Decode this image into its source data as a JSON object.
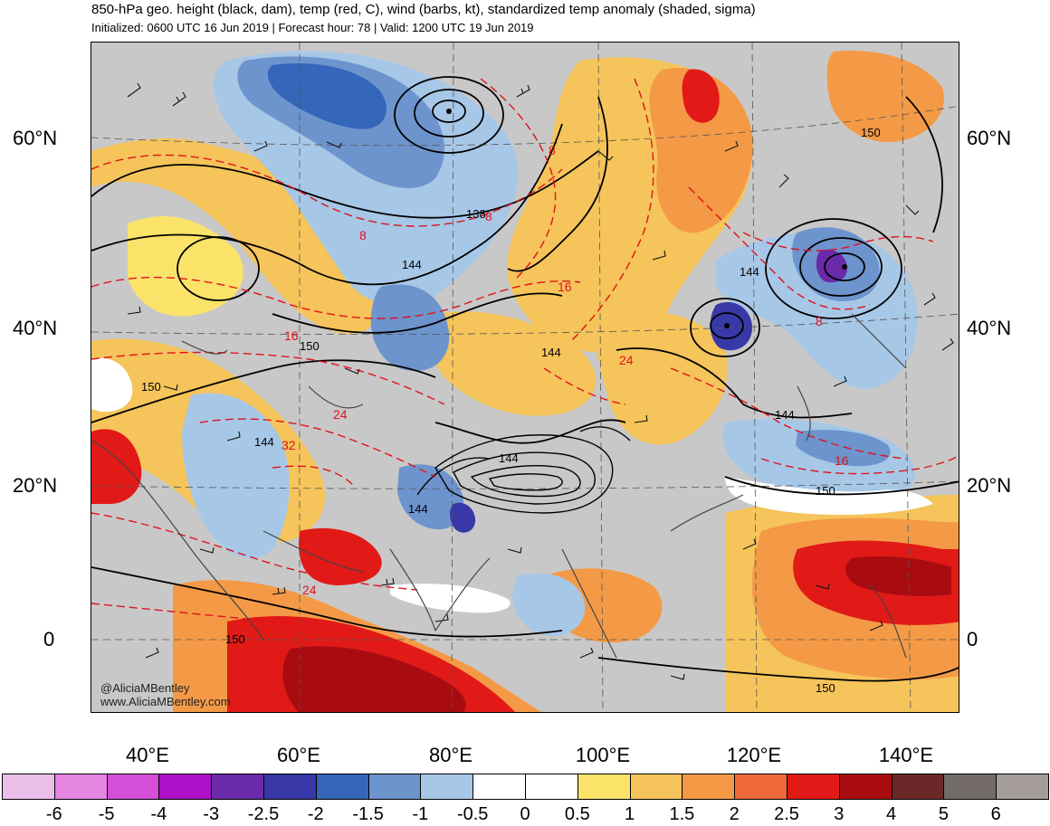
{
  "header": {
    "title": "850-hPa geo. height (black, dam), temp (red, C), wind (barbs, kt), standardized temp anomaly (shaded, sigma)",
    "subtitle": "Initialized: 0600 UTC 16 Jun 2019 | Forecast hour: 78 | Valid: 1200 UTC 19 Jun 2019"
  },
  "axes": {
    "lat_left": [
      "60°N",
      "40°N",
      "20°N",
      "0"
    ],
    "lat_right": [
      "60°N",
      "40°N",
      "20°N",
      "0"
    ],
    "lon_bottom": [
      "40°E",
      "60°E",
      "80°E",
      "100°E",
      "120°E",
      "140°E"
    ]
  },
  "map": {
    "height_labels": [
      "138",
      "144",
      "150",
      "144",
      "150",
      "144",
      "144",
      "150",
      "144",
      "144",
      "150",
      "150",
      "150",
      "144"
    ],
    "temp_labels": [
      "8",
      "8",
      "16",
      "24",
      "32",
      "16",
      "24",
      "8",
      "8",
      "16",
      "24"
    ]
  },
  "watermark": {
    "handle": "@AliciaMBentley",
    "site": "www.AliciaMBentley.com"
  },
  "colorbar": {
    "ticks": [
      "-6",
      "-5",
      "-4",
      "-3",
      "-2.5",
      "-2",
      "-1.5",
      "-1",
      "-0.5",
      "0",
      "0.5",
      "1",
      "1.5",
      "2",
      "2.5",
      "3",
      "4",
      "5",
      "6"
    ],
    "colors": [
      "#ebbde9",
      "#e485e1",
      "#d44ed7",
      "#ad12c9",
      "#6a2aa9",
      "#3838a8",
      "#3466b9",
      "#6d94cd",
      "#a7c7e7",
      "#ffffff",
      "#ffffff",
      "#fbe36a",
      "#f5c45a",
      "#f49a46",
      "#f06a3c",
      "#e11a17",
      "#a80c10",
      "#6b2828",
      "#736a6a",
      "#a59c9c"
    ]
  }
}
